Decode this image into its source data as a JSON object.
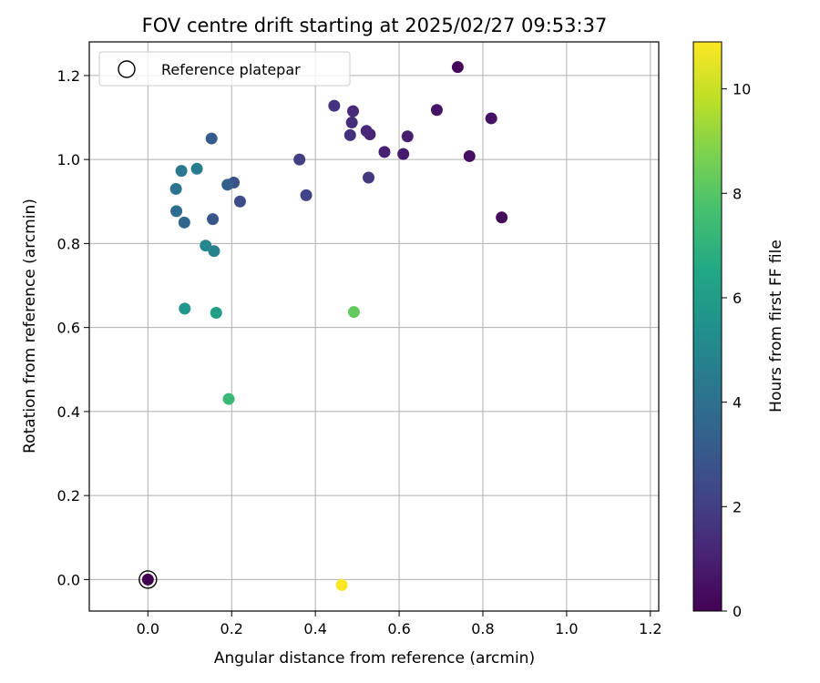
{
  "chart_data": {
    "type": "scatter",
    "title": "FOV centre drift starting at 2025/02/27 09:53:37",
    "xlabel": "Angular distance from reference (arcmin)",
    "ylabel": "Rotation from reference (arcmin)",
    "xlim": [
      -0.14,
      1.22
    ],
    "ylim": [
      -0.075,
      1.28
    ],
    "xticks": [
      0.0,
      0.2,
      0.4,
      0.6,
      0.8,
      1.0,
      1.2
    ],
    "xtick_labels": [
      "0.0",
      "0.2",
      "0.4",
      "0.6",
      "0.8",
      "1.0",
      "1.2"
    ],
    "yticks": [
      0.0,
      0.2,
      0.4,
      0.6,
      0.8,
      1.0,
      1.2
    ],
    "ytick_labels": [
      "0.0",
      "0.2",
      "0.4",
      "0.6",
      "0.8",
      "1.0",
      "1.2"
    ],
    "grid": true,
    "legend": {
      "placement": "top-left",
      "entries": [
        "Reference platepar"
      ]
    },
    "reference_point": {
      "x": 0.0,
      "y": 0.0
    },
    "colorbar": {
      "label": "Hours from first FF file",
      "colormap": "viridis",
      "range": [
        0,
        10.9
      ],
      "ticks": [
        0,
        2,
        4,
        6,
        8,
        10
      ],
      "tick_labels": [
        "0",
        "2",
        "4",
        "6",
        "8",
        "10"
      ]
    },
    "points": [
      {
        "x": 0.0,
        "y": 0.0,
        "hours": 0.0
      },
      {
        "x": 0.74,
        "y": 1.22,
        "hours": 0.2
      },
      {
        "x": 0.845,
        "y": 0.862,
        "hours": 0.3
      },
      {
        "x": 0.768,
        "y": 1.008,
        "hours": 0.4
      },
      {
        "x": 0.82,
        "y": 1.098,
        "hours": 0.5
      },
      {
        "x": 0.69,
        "y": 1.118,
        "hours": 0.6
      },
      {
        "x": 0.61,
        "y": 1.013,
        "hours": 0.8
      },
      {
        "x": 0.62,
        "y": 1.055,
        "hours": 0.9
      },
      {
        "x": 0.565,
        "y": 1.018,
        "hours": 1.0
      },
      {
        "x": 0.53,
        "y": 1.06,
        "hours": 1.1
      },
      {
        "x": 0.522,
        "y": 1.068,
        "hours": 1.2
      },
      {
        "x": 0.49,
        "y": 1.115,
        "hours": 1.3
      },
      {
        "x": 0.487,
        "y": 1.088,
        "hours": 1.4
      },
      {
        "x": 0.483,
        "y": 1.058,
        "hours": 1.5
      },
      {
        "x": 0.445,
        "y": 1.128,
        "hours": 1.6
      },
      {
        "x": 0.527,
        "y": 0.957,
        "hours": 1.8
      },
      {
        "x": 0.362,
        "y": 1.0,
        "hours": 2.0
      },
      {
        "x": 0.378,
        "y": 0.915,
        "hours": 2.2
      },
      {
        "x": 0.22,
        "y": 0.9,
        "hours": 2.5
      },
      {
        "x": 0.205,
        "y": 0.945,
        "hours": 2.7
      },
      {
        "x": 0.155,
        "y": 0.858,
        "hours": 2.9
      },
      {
        "x": 0.152,
        "y": 1.05,
        "hours": 3.1
      },
      {
        "x": 0.19,
        "y": 0.94,
        "hours": 3.3
      },
      {
        "x": 0.087,
        "y": 0.85,
        "hours": 3.6
      },
      {
        "x": 0.068,
        "y": 0.877,
        "hours": 3.9
      },
      {
        "x": 0.067,
        "y": 0.93,
        "hours": 4.1
      },
      {
        "x": 0.08,
        "y": 0.973,
        "hours": 4.3
      },
      {
        "x": 0.117,
        "y": 0.978,
        "hours": 4.5
      },
      {
        "x": 0.158,
        "y": 0.782,
        "hours": 4.8
      },
      {
        "x": 0.138,
        "y": 0.795,
        "hours": 5.0
      },
      {
        "x": 0.088,
        "y": 0.645,
        "hours": 5.7
      },
      {
        "x": 0.163,
        "y": 0.635,
        "hours": 6.0
      },
      {
        "x": 0.193,
        "y": 0.43,
        "hours": 7.3
      },
      {
        "x": 0.492,
        "y": 0.637,
        "hours": 8.3
      },
      {
        "x": 0.463,
        "y": -0.013,
        "hours": 10.9
      }
    ]
  }
}
